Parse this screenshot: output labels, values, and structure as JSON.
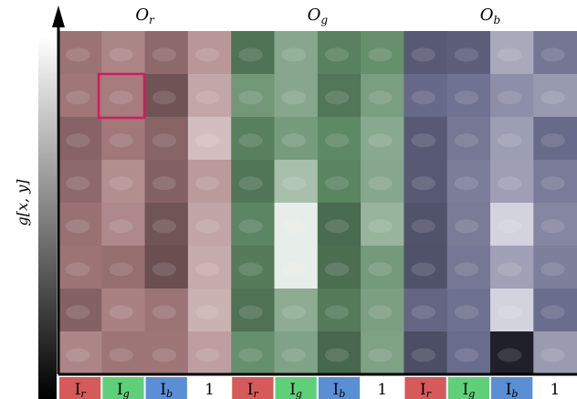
{
  "figure": {
    "y_axis_label": "g[x, y]",
    "channel_groups": [
      {
        "label_base": "O",
        "label_sub": "r",
        "tint": "#a57a7c"
      },
      {
        "label_base": "O",
        "label_sub": "g",
        "tint": "#5f8a66"
      },
      {
        "label_base": "O",
        "label_sub": "b",
        "tint": "#6a6c8c"
      }
    ],
    "input_labels": [
      {
        "base": "I",
        "sub": "r",
        "color": "#d65a5a"
      },
      {
        "base": "I",
        "sub": "g",
        "color": "#5fd07a"
      },
      {
        "base": "I",
        "sub": "b",
        "color": "#5a8fd6"
      },
      {
        "base": "1",
        "sub": "",
        "color": "#ffffff"
      },
      {
        "base": "I",
        "sub": "r",
        "color": "#d65a5a"
      },
      {
        "base": "I",
        "sub": "g",
        "color": "#5fd07a"
      },
      {
        "base": "I",
        "sub": "b",
        "color": "#5a8fd6"
      },
      {
        "base": "1",
        "sub": "",
        "color": "#ffffff"
      },
      {
        "base": "I",
        "sub": "r",
        "color": "#d65a5a"
      },
      {
        "base": "I",
        "sub": "g",
        "color": "#5fd07a"
      },
      {
        "base": "I",
        "sub": "b",
        "color": "#5a8fd6"
      },
      {
        "base": "1",
        "sub": "",
        "color": "#ffffff"
      }
    ],
    "highlight_color": "#d01c5c",
    "grid_rows": 8
  }
}
